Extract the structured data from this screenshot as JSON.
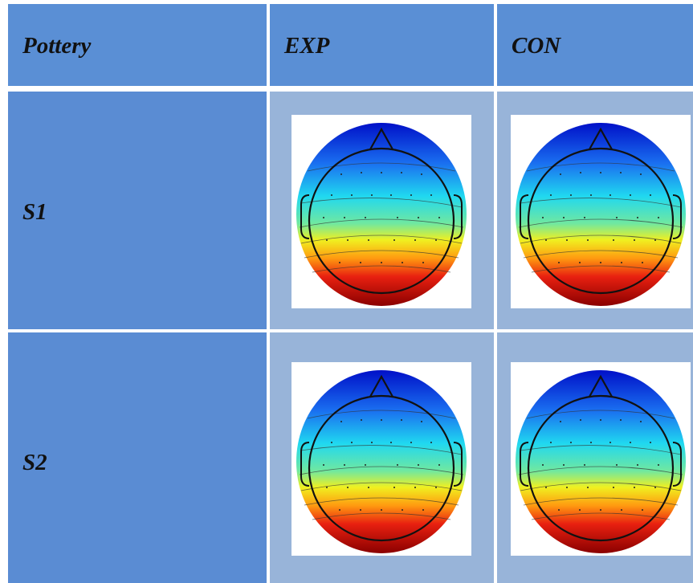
{
  "table": {
    "header": [
      "Pottery",
      "EXP",
      "CON"
    ],
    "rows": [
      {
        "label": "S1"
      },
      {
        "label": "S2"
      }
    ]
  }
}
